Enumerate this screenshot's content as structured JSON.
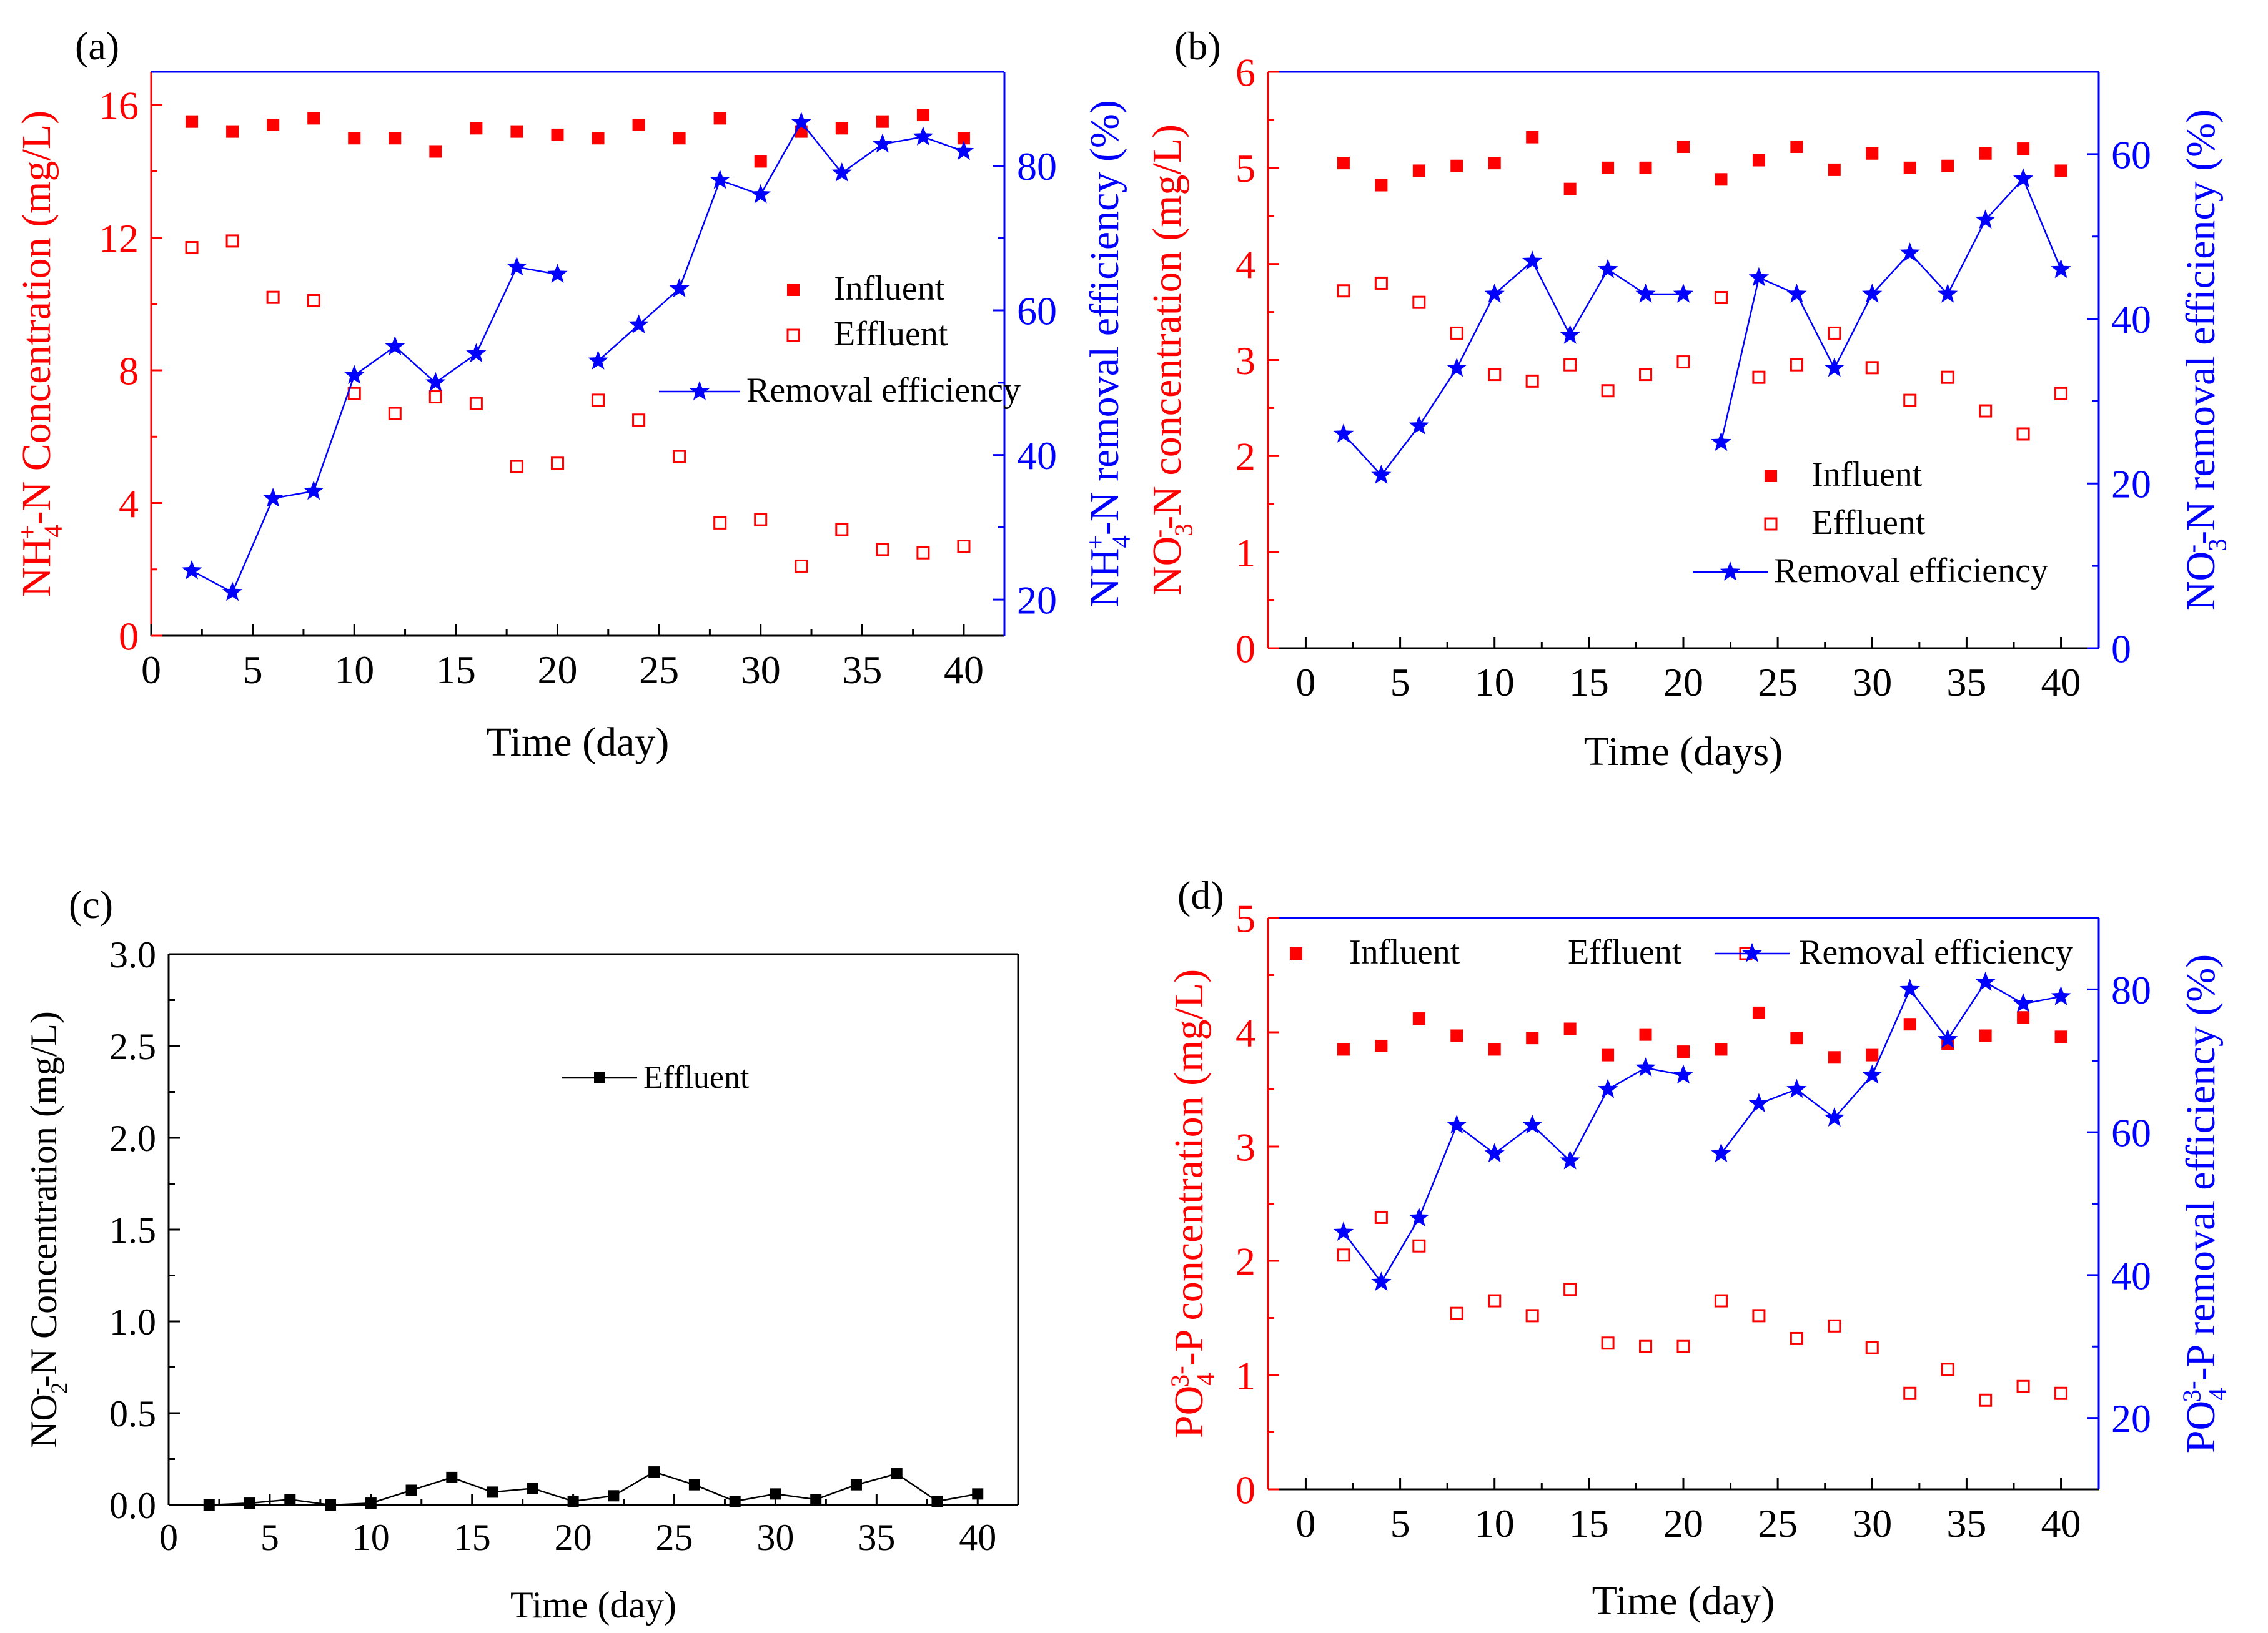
{
  "colors": {
    "influent": "#ff0000",
    "effluent": "#ff0000",
    "removal": "#0000ff",
    "nitrite": "#000000",
    "axis": "#000000"
  },
  "chart_data": [
    {
      "id": "a",
      "type": "scatter",
      "panel_label": "(a)",
      "xlabel": "Time (day)",
      "ylabel": {
        "main": "NH",
        "sub": "4",
        "sup": "+",
        "rest": "-N  Concentration (mg/L)"
      },
      "y2label": {
        "main": "NH",
        "sub": "4",
        "sup": "+",
        "rest": "-N removal efficiency (%)"
      },
      "xlim": [
        0,
        42
      ],
      "ylim": [
        0,
        17
      ],
      "y2lim": [
        15,
        93
      ],
      "xticks": [
        "0",
        "5",
        "10",
        "15",
        "20",
        "25",
        "30",
        "35",
        "40"
      ],
      "yticks": [
        "0",
        "4",
        "8",
        "12",
        "16"
      ],
      "y2ticks": [
        "20",
        "40",
        "60",
        "80"
      ],
      "legend": [
        "Influent",
        "Effluent",
        "Removal efficiency"
      ],
      "series": [
        {
          "name": "Influent",
          "x": [
            2,
            4,
            6,
            8,
            10,
            12,
            14,
            16,
            18,
            20,
            22,
            24,
            26,
            28,
            30,
            32,
            34,
            36,
            38,
            40
          ],
          "values": [
            15.5,
            15.2,
            15.4,
            15.6,
            15.0,
            15.0,
            14.6,
            15.3,
            15.2,
            15.1,
            15.0,
            15.4,
            15.0,
            15.6,
            14.3,
            15.2,
            15.3,
            15.5,
            15.7,
            15.0
          ]
        },
        {
          "name": "Effluent",
          "x": [
            2,
            4,
            6,
            8,
            10,
            12,
            14,
            16,
            18,
            20,
            22,
            24,
            26,
            28,
            30,
            32,
            34,
            36,
            38,
            40
          ],
          "values": [
            11.7,
            11.9,
            10.2,
            10.1,
            7.3,
            6.7,
            7.2,
            7.0,
            5.1,
            5.2,
            7.1,
            6.5,
            5.4,
            3.4,
            3.5,
            2.1,
            3.2,
            2.6,
            2.5,
            2.7
          ]
        },
        {
          "name": "Removal efficiency",
          "axis": "y2",
          "segments": [
            {
              "x": [
                2,
                4,
                6,
                8,
                10,
                12,
                14,
                16,
                18,
                20
              ],
              "values": [
                24,
                21,
                34,
                35,
                51,
                55,
                50,
                54,
                66,
                65
              ]
            },
            {
              "x": [
                22,
                24,
                26,
                28,
                30,
                32,
                34,
                36,
                38,
                40
              ],
              "values": [
                53,
                58,
                63,
                78,
                76,
                86,
                79,
                83,
                84,
                82
              ]
            }
          ]
        }
      ]
    },
    {
      "id": "b",
      "type": "scatter",
      "panel_label": "(b)",
      "xlabel": "Time (days)",
      "ylabel": {
        "main": "NO",
        "sub": "3",
        "sup": "-",
        "rest": "-N concentration (mg/L)"
      },
      "y2label": {
        "main": "NO",
        "sub": "3",
        "sup": "-",
        "rest": "-N removal efficiency (%)"
      },
      "xlim": [
        -2,
        42
      ],
      "ylim": [
        0,
        6
      ],
      "y2lim": [
        0,
        70
      ],
      "xticks": [
        "0",
        "5",
        "10",
        "15",
        "20",
        "25",
        "30",
        "35",
        "40"
      ],
      "yticks": [
        "0",
        "1",
        "2",
        "3",
        "4",
        "5",
        "6"
      ],
      "y2ticks": [
        "0",
        "20",
        "40",
        "60"
      ],
      "legend": [
        "Influent",
        "Effluent",
        "Removal efficiency"
      ],
      "series": [
        {
          "name": "Influent",
          "x": [
            2,
            4,
            6,
            8,
            10,
            12,
            14,
            16,
            18,
            20,
            22,
            24,
            26,
            28,
            30,
            32,
            34,
            36,
            38,
            40
          ],
          "values": [
            5.05,
            4.82,
            4.97,
            5.02,
            5.05,
            5.32,
            4.78,
            5.0,
            5.0,
            5.22,
            4.88,
            5.08,
            5.22,
            4.98,
            5.15,
            5.0,
            5.02,
            5.15,
            5.2,
            4.97
          ]
        },
        {
          "name": "Effluent",
          "x": [
            2,
            4,
            6,
            8,
            10,
            12,
            14,
            16,
            18,
            20,
            22,
            24,
            26,
            28,
            30,
            32,
            34,
            36,
            38,
            40
          ],
          "values": [
            3.72,
            3.8,
            3.6,
            3.28,
            2.85,
            2.78,
            2.95,
            2.68,
            2.85,
            2.98,
            3.65,
            2.82,
            2.95,
            3.28,
            2.92,
            2.58,
            2.82,
            2.47,
            2.23,
            2.65
          ]
        },
        {
          "name": "Removal efficiency",
          "axis": "y2",
          "segments": [
            {
              "x": [
                2,
                4,
                6,
                8,
                10,
                12,
                14,
                16,
                18,
                20
              ],
              "values": [
                26,
                21,
                27,
                34,
                43,
                47,
                38,
                46,
                43,
                43
              ]
            },
            {
              "x": [
                22,
                24,
                26,
                28,
                30,
                32,
                34,
                36,
                38,
                40
              ],
              "values": [
                25,
                45,
                43,
                34,
                43,
                48,
                43,
                52,
                57,
                46
              ]
            }
          ]
        }
      ]
    },
    {
      "id": "c",
      "type": "line",
      "panel_label": "(c)",
      "xlabel": "Time (day)",
      "ylabel": {
        "main": "NO",
        "sub": "2",
        "sup": "-",
        "rest": "-N Concentration (mg/L)"
      },
      "xlim": [
        0,
        42
      ],
      "ylim": [
        0,
        3.0
      ],
      "xticks": [
        "0",
        "5",
        "10",
        "15",
        "20",
        "25",
        "30",
        "35",
        "40"
      ],
      "yticks": [
        "0.0",
        "0.5",
        "1.0",
        "1.5",
        "2.0",
        "2.5",
        "3.0"
      ],
      "legend": [
        "Effluent"
      ],
      "series": [
        {
          "name": "Effluent",
          "x": [
            2,
            4,
            6,
            8,
            10,
            12,
            14,
            16,
            18,
            20,
            22,
            24,
            26,
            28,
            30,
            32,
            34,
            36,
            38,
            40
          ],
          "values": [
            0.0,
            0.01,
            0.03,
            0.0,
            0.01,
            0.08,
            0.15,
            0.07,
            0.09,
            0.02,
            0.05,
            0.18,
            0.11,
            0.02,
            0.06,
            0.03,
            0.11,
            0.17,
            0.02,
            0.06
          ]
        }
      ]
    },
    {
      "id": "d",
      "type": "scatter",
      "panel_label": "(d)",
      "xlabel": "Time (day)",
      "ylabel": {
        "main": "PO",
        "sub": "4",
        "sup": "3-",
        "rest": "-P concentration (mg/L)"
      },
      "y2label": {
        "main": "PO",
        "sub": "4",
        "sup": "3-",
        "rest": "-P removal efficiency (%)"
      },
      "xlim": [
        -2,
        42
      ],
      "ylim": [
        0,
        5
      ],
      "y2lim": [
        10,
        90
      ],
      "xticks": [
        "0",
        "5",
        "10",
        "15",
        "20",
        "25",
        "30",
        "35",
        "40"
      ],
      "yticks": [
        "0",
        "1",
        "2",
        "3",
        "4",
        "5"
      ],
      "y2ticks": [
        "20",
        "40",
        "60",
        "80"
      ],
      "legend": [
        "Influent",
        "Effluent",
        "Removal efficiency"
      ],
      "series": [
        {
          "name": "Influent",
          "x": [
            2,
            4,
            6,
            8,
            10,
            12,
            14,
            16,
            18,
            20,
            22,
            24,
            26,
            28,
            30,
            32,
            34,
            36,
            38,
            40
          ],
          "values": [
            3.85,
            3.88,
            4.12,
            3.97,
            3.85,
            3.95,
            4.03,
            3.8,
            3.98,
            3.83,
            3.85,
            4.17,
            3.95,
            3.78,
            3.8,
            4.07,
            3.9,
            3.97,
            4.13,
            3.96
          ]
        },
        {
          "name": "Effluent",
          "x": [
            2,
            4,
            6,
            8,
            10,
            12,
            14,
            16,
            18,
            20,
            22,
            24,
            26,
            28,
            30,
            32,
            34,
            36,
            38,
            40
          ],
          "values": [
            2.05,
            2.38,
            2.13,
            1.54,
            1.65,
            1.52,
            1.75,
            1.28,
            1.25,
            1.25,
            1.65,
            1.52,
            1.32,
            1.43,
            1.24,
            0.84,
            1.05,
            0.78,
            0.9,
            0.84
          ]
        },
        {
          "name": "Removal efficiency",
          "axis": "y2",
          "segments": [
            {
              "x": [
                2,
                4,
                6,
                8,
                10,
                12,
                14,
                16,
                18,
                20
              ],
              "values": [
                46,
                39,
                48,
                61,
                57,
                61,
                56,
                66,
                69,
                68
              ]
            },
            {
              "x": [
                22,
                24,
                26,
                28,
                30,
                32,
                34,
                36,
                38,
                40
              ],
              "values": [
                57,
                64,
                66,
                62,
                68,
                80,
                73,
                81,
                78,
                79
              ]
            }
          ]
        }
      ]
    }
  ]
}
